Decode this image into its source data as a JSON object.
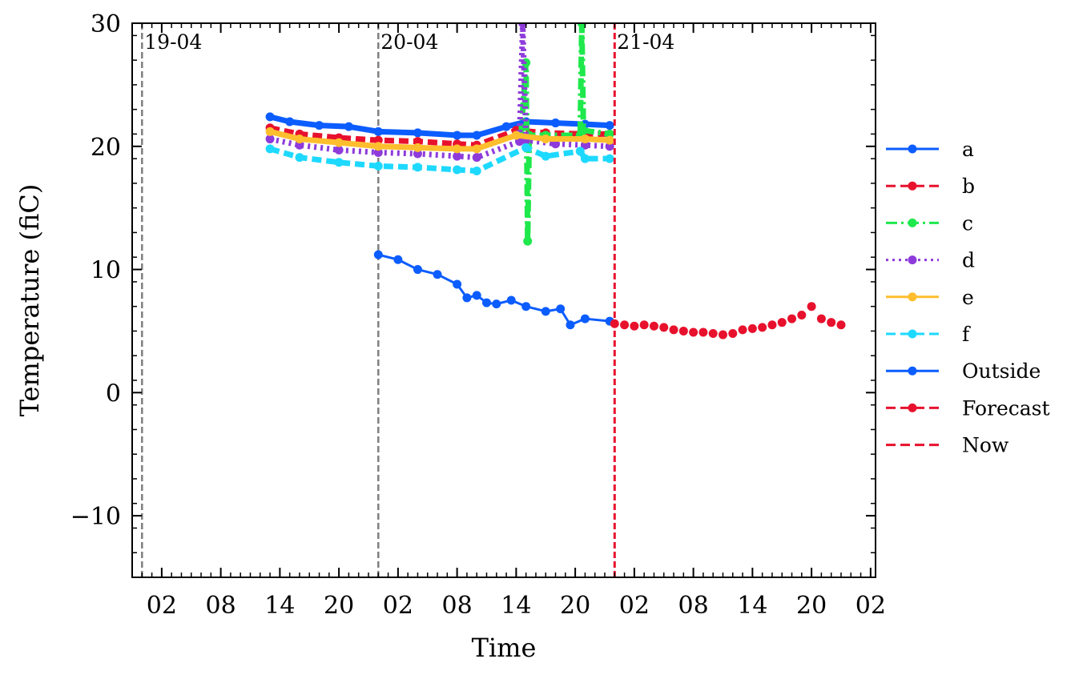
{
  "chart_data": {
    "type": "line",
    "xlabel": "Time",
    "ylabel": "Temperature (fiC)",
    "ylim": [
      -15,
      30
    ],
    "xlim": [
      "2024-04-18T23:00",
      "2024-04-22T02:30"
    ],
    "x_tick_labels": [
      "02",
      "08",
      "14",
      "20",
      "02",
      "08",
      "14",
      "20",
      "02",
      "08",
      "14",
      "20",
      "02"
    ],
    "x_ticks": [
      "2024-04-19T02:00",
      "2024-04-19T08:00",
      "2024-04-19T14:00",
      "2024-04-19T20:00",
      "2024-04-20T02:00",
      "2024-04-20T08:00",
      "2024-04-20T14:00",
      "2024-04-20T20:00",
      "2024-04-21T02:00",
      "2024-04-21T08:00",
      "2024-04-21T14:00",
      "2024-04-21T20:00",
      "2024-04-22T02:00"
    ],
    "y_ticks": [
      -10,
      0,
      10,
      20,
      30
    ],
    "y_tick_labels": [
      "−10",
      "0",
      "10",
      "20",
      "30"
    ],
    "date_markers": [
      {
        "label": "19-04",
        "x": "2024-04-19T00:00"
      },
      {
        "label": "20-04",
        "x": "2024-04-20T00:00"
      },
      {
        "label": "21-04",
        "x": "2024-04-21T00:00"
      }
    ],
    "now": "2024-04-21T00:00",
    "legend_position": "center-right-outside",
    "series": [
      {
        "name": "a",
        "color": "#0C5DFF",
        "dash": "solid",
        "x": [
          "2024-04-19T13:00",
          "2024-04-19T15:00",
          "2024-04-19T18:00",
          "2024-04-19T21:00",
          "2024-04-20T00:00",
          "2024-04-20T04:00",
          "2024-04-20T08:00",
          "2024-04-20T10:00",
          "2024-04-20T13:00",
          "2024-04-20T15:00",
          "2024-04-20T18:00",
          "2024-04-20T21:00",
          "2024-04-20T23:30"
        ],
        "y": [
          22.4,
          22.0,
          21.7,
          21.6,
          21.2,
          21.1,
          20.9,
          20.9,
          21.6,
          22.0,
          21.9,
          21.8,
          21.7
        ]
      },
      {
        "name": "b",
        "color": "#E8112D",
        "dash": "dashed",
        "x": [
          "2024-04-19T13:00",
          "2024-04-19T16:00",
          "2024-04-19T20:00",
          "2024-04-20T00:00",
          "2024-04-20T04:00",
          "2024-04-20T08:00",
          "2024-04-20T10:00",
          "2024-04-20T14:00",
          "2024-04-20T17:00",
          "2024-04-20T21:00",
          "2024-04-20T23:30"
        ],
        "y": [
          21.5,
          21.0,
          20.7,
          20.5,
          20.4,
          20.2,
          20.1,
          21.3,
          21.1,
          21.0,
          21.0
        ]
      },
      {
        "name": "c",
        "color": "#1EE84B",
        "dash": "dashdot",
        "x": [
          "2024-04-20T14:30",
          "2024-04-20T15:00",
          "2024-04-20T15:10",
          "2024-04-20T15:20",
          "2024-04-20T17:00",
          "2024-04-20T20:30",
          "2024-04-20T20:40",
          "2024-04-20T20:50",
          "2024-04-20T23:30"
        ],
        "y": [
          20.9,
          26.8,
          12.3,
          20.9,
          20.9,
          20.9,
          30.0,
          21.3,
          21.0
        ]
      },
      {
        "name": "d",
        "color": "#8E3BDB",
        "dash": "dotted",
        "x": [
          "2024-04-19T13:00",
          "2024-04-19T16:00",
          "2024-04-19T20:00",
          "2024-04-20T00:00",
          "2024-04-20T04:00",
          "2024-04-20T08:00",
          "2024-04-20T10:00",
          "2024-04-20T14:20",
          "2024-04-20T14:40",
          "2024-04-20T15:00",
          "2024-04-20T18:00",
          "2024-04-20T21:00",
          "2024-04-20T23:30"
        ],
        "y": [
          20.6,
          20.1,
          19.7,
          19.5,
          19.4,
          19.2,
          19.1,
          20.4,
          30.0,
          20.5,
          20.2,
          20.1,
          20.0
        ]
      },
      {
        "name": "e",
        "color": "#FFBE2E",
        "dash": "solid",
        "x": [
          "2024-04-19T13:00",
          "2024-04-19T16:00",
          "2024-04-19T20:00",
          "2024-04-20T00:00",
          "2024-04-20T04:00",
          "2024-04-20T08:00",
          "2024-04-20T10:00",
          "2024-04-20T14:00",
          "2024-04-20T17:00",
          "2024-04-20T21:00",
          "2024-04-20T23:30"
        ],
        "y": [
          21.2,
          20.6,
          20.3,
          20.0,
          19.9,
          19.8,
          19.8,
          20.9,
          20.6,
          20.6,
          20.5
        ]
      },
      {
        "name": "f",
        "color": "#1ED9FF",
        "dash": "dashed",
        "x": [
          "2024-04-19T13:00",
          "2024-04-19T16:00",
          "2024-04-19T20:00",
          "2024-04-20T00:00",
          "2024-04-20T04:00",
          "2024-04-20T08:00",
          "2024-04-20T10:00",
          "2024-04-20T15:00",
          "2024-04-20T17:00",
          "2024-04-20T20:30",
          "2024-04-20T21:00",
          "2024-04-20T23:30"
        ],
        "y": [
          19.8,
          19.1,
          18.7,
          18.4,
          18.3,
          18.1,
          18.0,
          19.9,
          19.2,
          19.6,
          19.0,
          19.0
        ]
      },
      {
        "name": "Outside",
        "color": "#0C5DFF",
        "dash": "solid",
        "x": [
          "2024-04-20T00:00",
          "2024-04-20T02:00",
          "2024-04-20T04:00",
          "2024-04-20T06:00",
          "2024-04-20T08:00",
          "2024-04-20T09:00",
          "2024-04-20T10:00",
          "2024-04-20T11:00",
          "2024-04-20T12:00",
          "2024-04-20T13:30",
          "2024-04-20T15:00",
          "2024-04-20T17:00",
          "2024-04-20T18:30",
          "2024-04-20T19:30",
          "2024-04-20T21:00",
          "2024-04-20T23:30"
        ],
        "y": [
          11.2,
          10.8,
          10.0,
          9.6,
          8.8,
          7.7,
          7.9,
          7.3,
          7.2,
          7.5,
          7.0,
          6.6,
          6.8,
          5.5,
          6.0,
          5.8
        ]
      },
      {
        "name": "Forecast",
        "color": "#E8112D",
        "dash": "dashed",
        "x": [
          "2024-04-21T00:00",
          "2024-04-21T01:00",
          "2024-04-21T02:00",
          "2024-04-21T03:00",
          "2024-04-21T04:00",
          "2024-04-21T05:00",
          "2024-04-21T06:00",
          "2024-04-21T07:00",
          "2024-04-21T08:00",
          "2024-04-21T09:00",
          "2024-04-21T10:00",
          "2024-04-21T11:00",
          "2024-04-21T12:00",
          "2024-04-21T13:00",
          "2024-04-21T14:00",
          "2024-04-21T15:00",
          "2024-04-21T16:00",
          "2024-04-21T17:00",
          "2024-04-21T18:00",
          "2024-04-21T19:00",
          "2024-04-21T20:00",
          "2024-04-21T21:00",
          "2024-04-21T22:00",
          "2024-04-21T23:00"
        ],
        "y": [
          5.6,
          5.5,
          5.4,
          5.5,
          5.4,
          5.3,
          5.1,
          5.0,
          4.9,
          4.9,
          4.8,
          4.7,
          4.8,
          5.1,
          5.2,
          5.3,
          5.5,
          5.7,
          6.0,
          6.3,
          7.0,
          6.0,
          5.7,
          5.5
        ]
      }
    ],
    "legend": [
      {
        "label": "a",
        "color": "#0C5DFF",
        "dash": "solid",
        "marker": true
      },
      {
        "label": "b",
        "color": "#E8112D",
        "dash": "dashed",
        "marker": true
      },
      {
        "label": "c",
        "color": "#1EE84B",
        "dash": "dashdot",
        "marker": true
      },
      {
        "label": "d",
        "color": "#8E3BDB",
        "dash": "dotted",
        "marker": true
      },
      {
        "label": "e",
        "color": "#FFBE2E",
        "dash": "solid",
        "marker": true
      },
      {
        "label": "f",
        "color": "#1ED9FF",
        "dash": "dashed",
        "marker": true
      },
      {
        "label": "Outside",
        "color": "#0C5DFF",
        "dash": "solid",
        "marker": true
      },
      {
        "label": "Forecast",
        "color": "#E8112D",
        "dash": "dashed",
        "marker": true
      },
      {
        "label": "Now",
        "color": "#E8112D",
        "dash": "dashed",
        "marker": false
      }
    ]
  }
}
